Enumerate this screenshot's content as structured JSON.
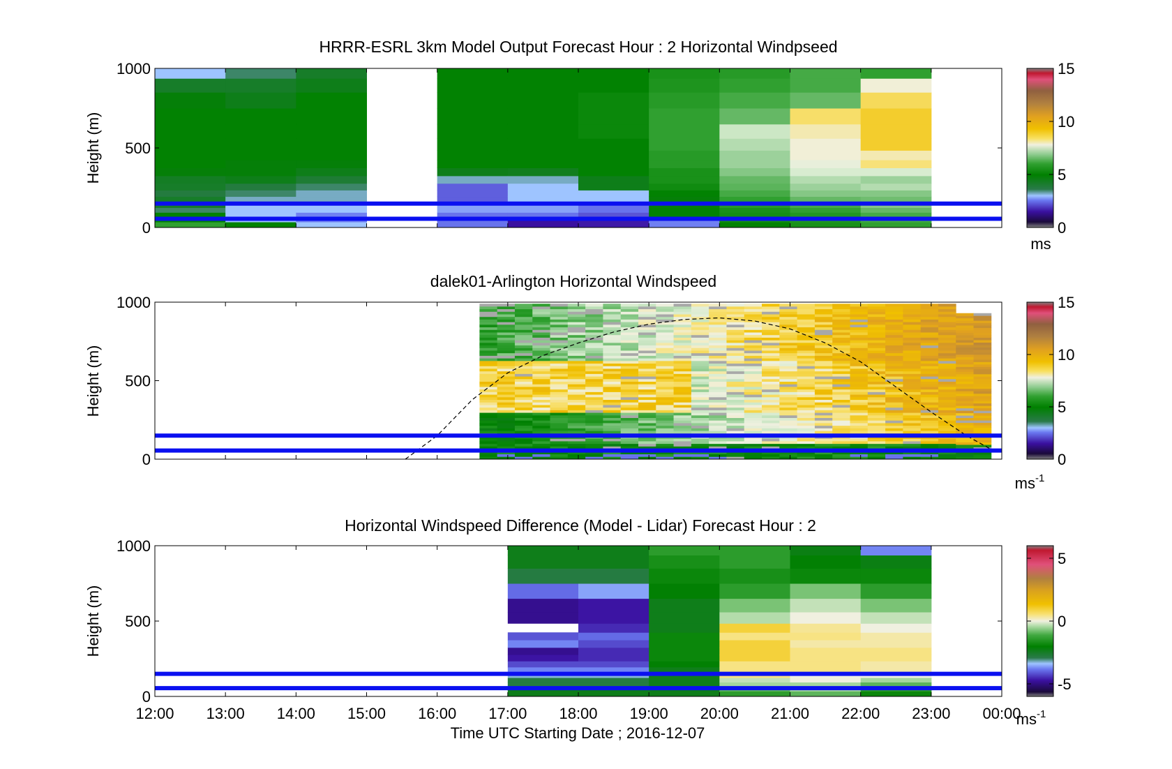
{
  "colors": {
    "reference_lines": "#0a10f0",
    "diurnal_curve": "#000000",
    "no_data": "#ffffff"
  },
  "chart_data": [
    {
      "type": "heatmap",
      "title": "HRRR-ESRL 3km Model Output   Forecast Hour : 2 Horizontal Windpseed",
      "ylabel": "Height (m)",
      "xlabel": "",
      "x_ticks": [
        "12:00",
        "13:00",
        "14:00",
        "15:00",
        "16:00",
        "17:00",
        "18:00",
        "19:00",
        "20:00",
        "21:00",
        "22:00",
        "23:00",
        "00:00"
      ],
      "x_tick_labels_visible": false,
      "xlim_hours": [
        12,
        24
      ],
      "ylim": [
        0,
        1000
      ],
      "y_ticks": [
        0,
        500,
        1000
      ],
      "colorbar": {
        "unit": "ms",
        "ticks": [
          0,
          5,
          10,
          15
        ],
        "range": [
          0,
          15
        ]
      },
      "reference_lines_m": [
        150,
        55
      ],
      "column_width_hours": 1,
      "profile_heights_m": [
        20,
        50,
        80,
        110,
        140,
        175,
        215,
        255,
        300,
        350,
        400,
        450,
        520,
        600,
        700,
        800,
        900,
        975
      ],
      "columns": [
        {
          "start": 12,
          "values": [
            6,
            5,
            5,
            3.5,
            4.2,
            4.2,
            3.8,
            4.2,
            4.3,
            4.8,
            5,
            5,
            5,
            5,
            5,
            4.8,
            4.2,
            3
          ]
        },
        {
          "start": 13,
          "values": [
            5,
            3,
            3,
            3,
            3,
            3.2,
            3.5,
            3.8,
            4.5,
            4.8,
            4.8,
            5,
            5,
            5,
            5,
            4.5,
            4.2,
            3.5
          ]
        },
        {
          "start": 14,
          "values": [
            3,
            2.6,
            2.6,
            3,
            3,
            3.2,
            3.2,
            3.5,
            4,
            4.5,
            4.8,
            5,
            5,
            5,
            5,
            5,
            4.5,
            4.2
          ]
        },
        {
          "start": 15,
          "values": [
            null,
            null,
            null,
            null,
            null,
            null,
            null,
            null,
            null,
            null,
            null,
            null,
            null,
            null,
            null,
            null,
            null,
            null
          ]
        },
        {
          "start": 16,
          "values": [
            2.5,
            2.5,
            2.5,
            2.8,
            2.8,
            2.3,
            2.3,
            2.3,
            3.2,
            4.5,
            5,
            5,
            5,
            5,
            5,
            5,
            5,
            5
          ]
        },
        {
          "start": 17,
          "values": [
            1.5,
            1.5,
            2.5,
            2.8,
            2.8,
            3,
            3,
            3,
            3.2,
            4.4,
            5,
            5,
            5,
            5,
            5,
            5,
            5,
            5
          ]
        },
        {
          "start": 18,
          "values": [
            1.6,
            1.6,
            2.2,
            2.5,
            2.5,
            3,
            3,
            4.5,
            4.5,
            5,
            5,
            5,
            5,
            5.2,
            5.2,
            5.2,
            5,
            5
          ]
        },
        {
          "start": 19,
          "values": [
            2.6,
            2.6,
            5,
            5,
            4.8,
            4.8,
            5,
            5.3,
            5.5,
            5.5,
            5.8,
            5.8,
            6,
            6,
            6,
            5.8,
            5.6,
            5.5
          ]
        },
        {
          "start": 20,
          "values": [
            5,
            5.4,
            5.4,
            5.5,
            5.8,
            6,
            6.2,
            6.4,
            6.5,
            6.8,
            7,
            7,
            7.2,
            7.4,
            6.5,
            6.2,
            6,
            5.8
          ]
        },
        {
          "start": 21,
          "values": [
            5.5,
            5.7,
            5.7,
            6,
            6.2,
            6.5,
            6.8,
            7,
            7.2,
            7.5,
            7.8,
            8,
            8,
            8.2,
            8.6,
            6.5,
            6.2,
            6.2
          ]
        },
        {
          "start": 22,
          "values": [
            6,
            6.2,
            6.2,
            6.5,
            6.8,
            6.6,
            6.8,
            7.2,
            7,
            7.5,
            8.5,
            8.2,
            9,
            9,
            9,
            8.7,
            8,
            6
          ]
        },
        {
          "start": 23,
          "values": [
            null,
            null,
            null,
            null,
            null,
            null,
            null,
            null,
            null,
            null,
            null,
            null,
            null,
            null,
            null,
            null,
            null,
            null
          ]
        }
      ]
    },
    {
      "type": "heatmap",
      "title": "dalek01-Arlington  Horizontal Windspeed",
      "ylabel": "Height (m)",
      "xlabel": "",
      "x_ticks": [
        "12:00",
        "13:00",
        "14:00",
        "15:00",
        "16:00",
        "17:00",
        "18:00",
        "19:00",
        "20:00",
        "21:00",
        "22:00",
        "23:00",
        "00:00"
      ],
      "x_tick_labels_visible": false,
      "xlim_hours": [
        12,
        24
      ],
      "ylim": [
        0,
        1000
      ],
      "y_ticks": [
        0,
        500,
        1000
      ],
      "colorbar": {
        "unit": "ms",
        "unit_superscript": "-1",
        "ticks": [
          0,
          5,
          10,
          15
        ],
        "range": [
          0,
          15
        ]
      },
      "reference_lines_m": [
        150,
        55
      ],
      "data_time_range_hours": [
        16.6,
        23.85
      ],
      "profile_interval_hours": 0.25,
      "annotations": [
        {
          "type": "dashed_curve",
          "description": "boundary-layer height estimate",
          "points": [
            [
              15.55,
              0
            ],
            [
              16.0,
              150
            ],
            [
              16.5,
              380
            ],
            [
              17.0,
              550
            ],
            [
              17.5,
              660
            ],
            [
              18.0,
              740
            ],
            [
              18.5,
              810
            ],
            [
              19.0,
              860
            ],
            [
              19.5,
              890
            ],
            [
              20.0,
              900
            ],
            [
              20.5,
              880
            ],
            [
              21.0,
              830
            ],
            [
              21.5,
              740
            ],
            [
              22.0,
              620
            ],
            [
              22.5,
              460
            ],
            [
              23.0,
              300
            ],
            [
              23.5,
              150
            ],
            [
              23.9,
              50
            ]
          ]
        }
      ]
    },
    {
      "type": "heatmap",
      "title": "Horizontal Windspeed Difference (Model - Lidar) Forecast Hour : 2",
      "ylabel": "Height (m)",
      "xlabel": "Time UTC  Starting Date ; 2016-12-07",
      "x_ticks": [
        "12:00",
        "13:00",
        "14:00",
        "15:00",
        "16:00",
        "17:00",
        "18:00",
        "19:00",
        "20:00",
        "21:00",
        "22:00",
        "23:00",
        "00:00"
      ],
      "x_tick_labels_visible": true,
      "xlim_hours": [
        12,
        24
      ],
      "ylim": [
        0,
        1000
      ],
      "y_ticks": [
        0,
        500,
        1000
      ],
      "colorbar": {
        "unit": "ms",
        "unit_superscript": "-1",
        "ticks": [
          -5,
          0,
          5
        ],
        "range": [
          -6,
          6
        ]
      },
      "reference_lines_m": [
        150,
        55
      ],
      "column_width_hours": 1,
      "profile_heights_m": [
        20,
        50,
        80,
        110,
        140,
        175,
        215,
        255,
        300,
        350,
        400,
        450,
        520,
        600,
        700,
        800,
        900,
        975
      ],
      "columns": [
        {
          "start": 17,
          "values": [
            -2.5,
            -2.5,
            -3,
            -3,
            -3.5,
            -4,
            -4.5,
            -5,
            -5.2,
            -4,
            -4.4,
            null,
            -5.2,
            -5.2,
            -4.2,
            -3,
            -2.5,
            -2.5
          ]
        },
        {
          "start": 18,
          "values": [
            -2.5,
            -2.5,
            -3,
            -3,
            -3.5,
            -4,
            -4.5,
            -4.8,
            -4.8,
            -4.5,
            -4.2,
            -4.8,
            -5,
            -5,
            -3.8,
            -3,
            -2.5,
            -2.5
          ]
        },
        {
          "start": 19,
          "values": [
            -2.5,
            -2.5,
            -2.5,
            -2.5,
            -2.5,
            -2.5,
            -2.2,
            -2,
            -2,
            -2,
            -2,
            -2.5,
            -2.5,
            -2.5,
            -2.2,
            -2,
            -1.8,
            -1.5
          ]
        },
        {
          "start": 20,
          "values": [
            -1.5,
            -1,
            -0.5,
            -0.3,
            0.5,
            0.5,
            0.5,
            1,
            1,
            1,
            0.5,
            1,
            -0.4,
            -0.8,
            -1.5,
            -1.8,
            -1.5,
            -1.5
          ]
        },
        {
          "start": 21,
          "values": [
            -1,
            -0.5,
            -0.5,
            0,
            0,
            0.5,
            0.5,
            0.5,
            0.5,
            0.3,
            0.5,
            0.4,
            0,
            -0.3,
            -0.8,
            -2,
            -2.2,
            -2.4
          ]
        },
        {
          "start": 22,
          "values": [
            -2,
            -1.5,
            -1,
            -0.5,
            0,
            0.3,
            0.3,
            0.5,
            0.5,
            0.3,
            0.3,
            0,
            -0.3,
            -0.8,
            -1.5,
            -2,
            -2.4,
            -4
          ]
        }
      ]
    }
  ]
}
